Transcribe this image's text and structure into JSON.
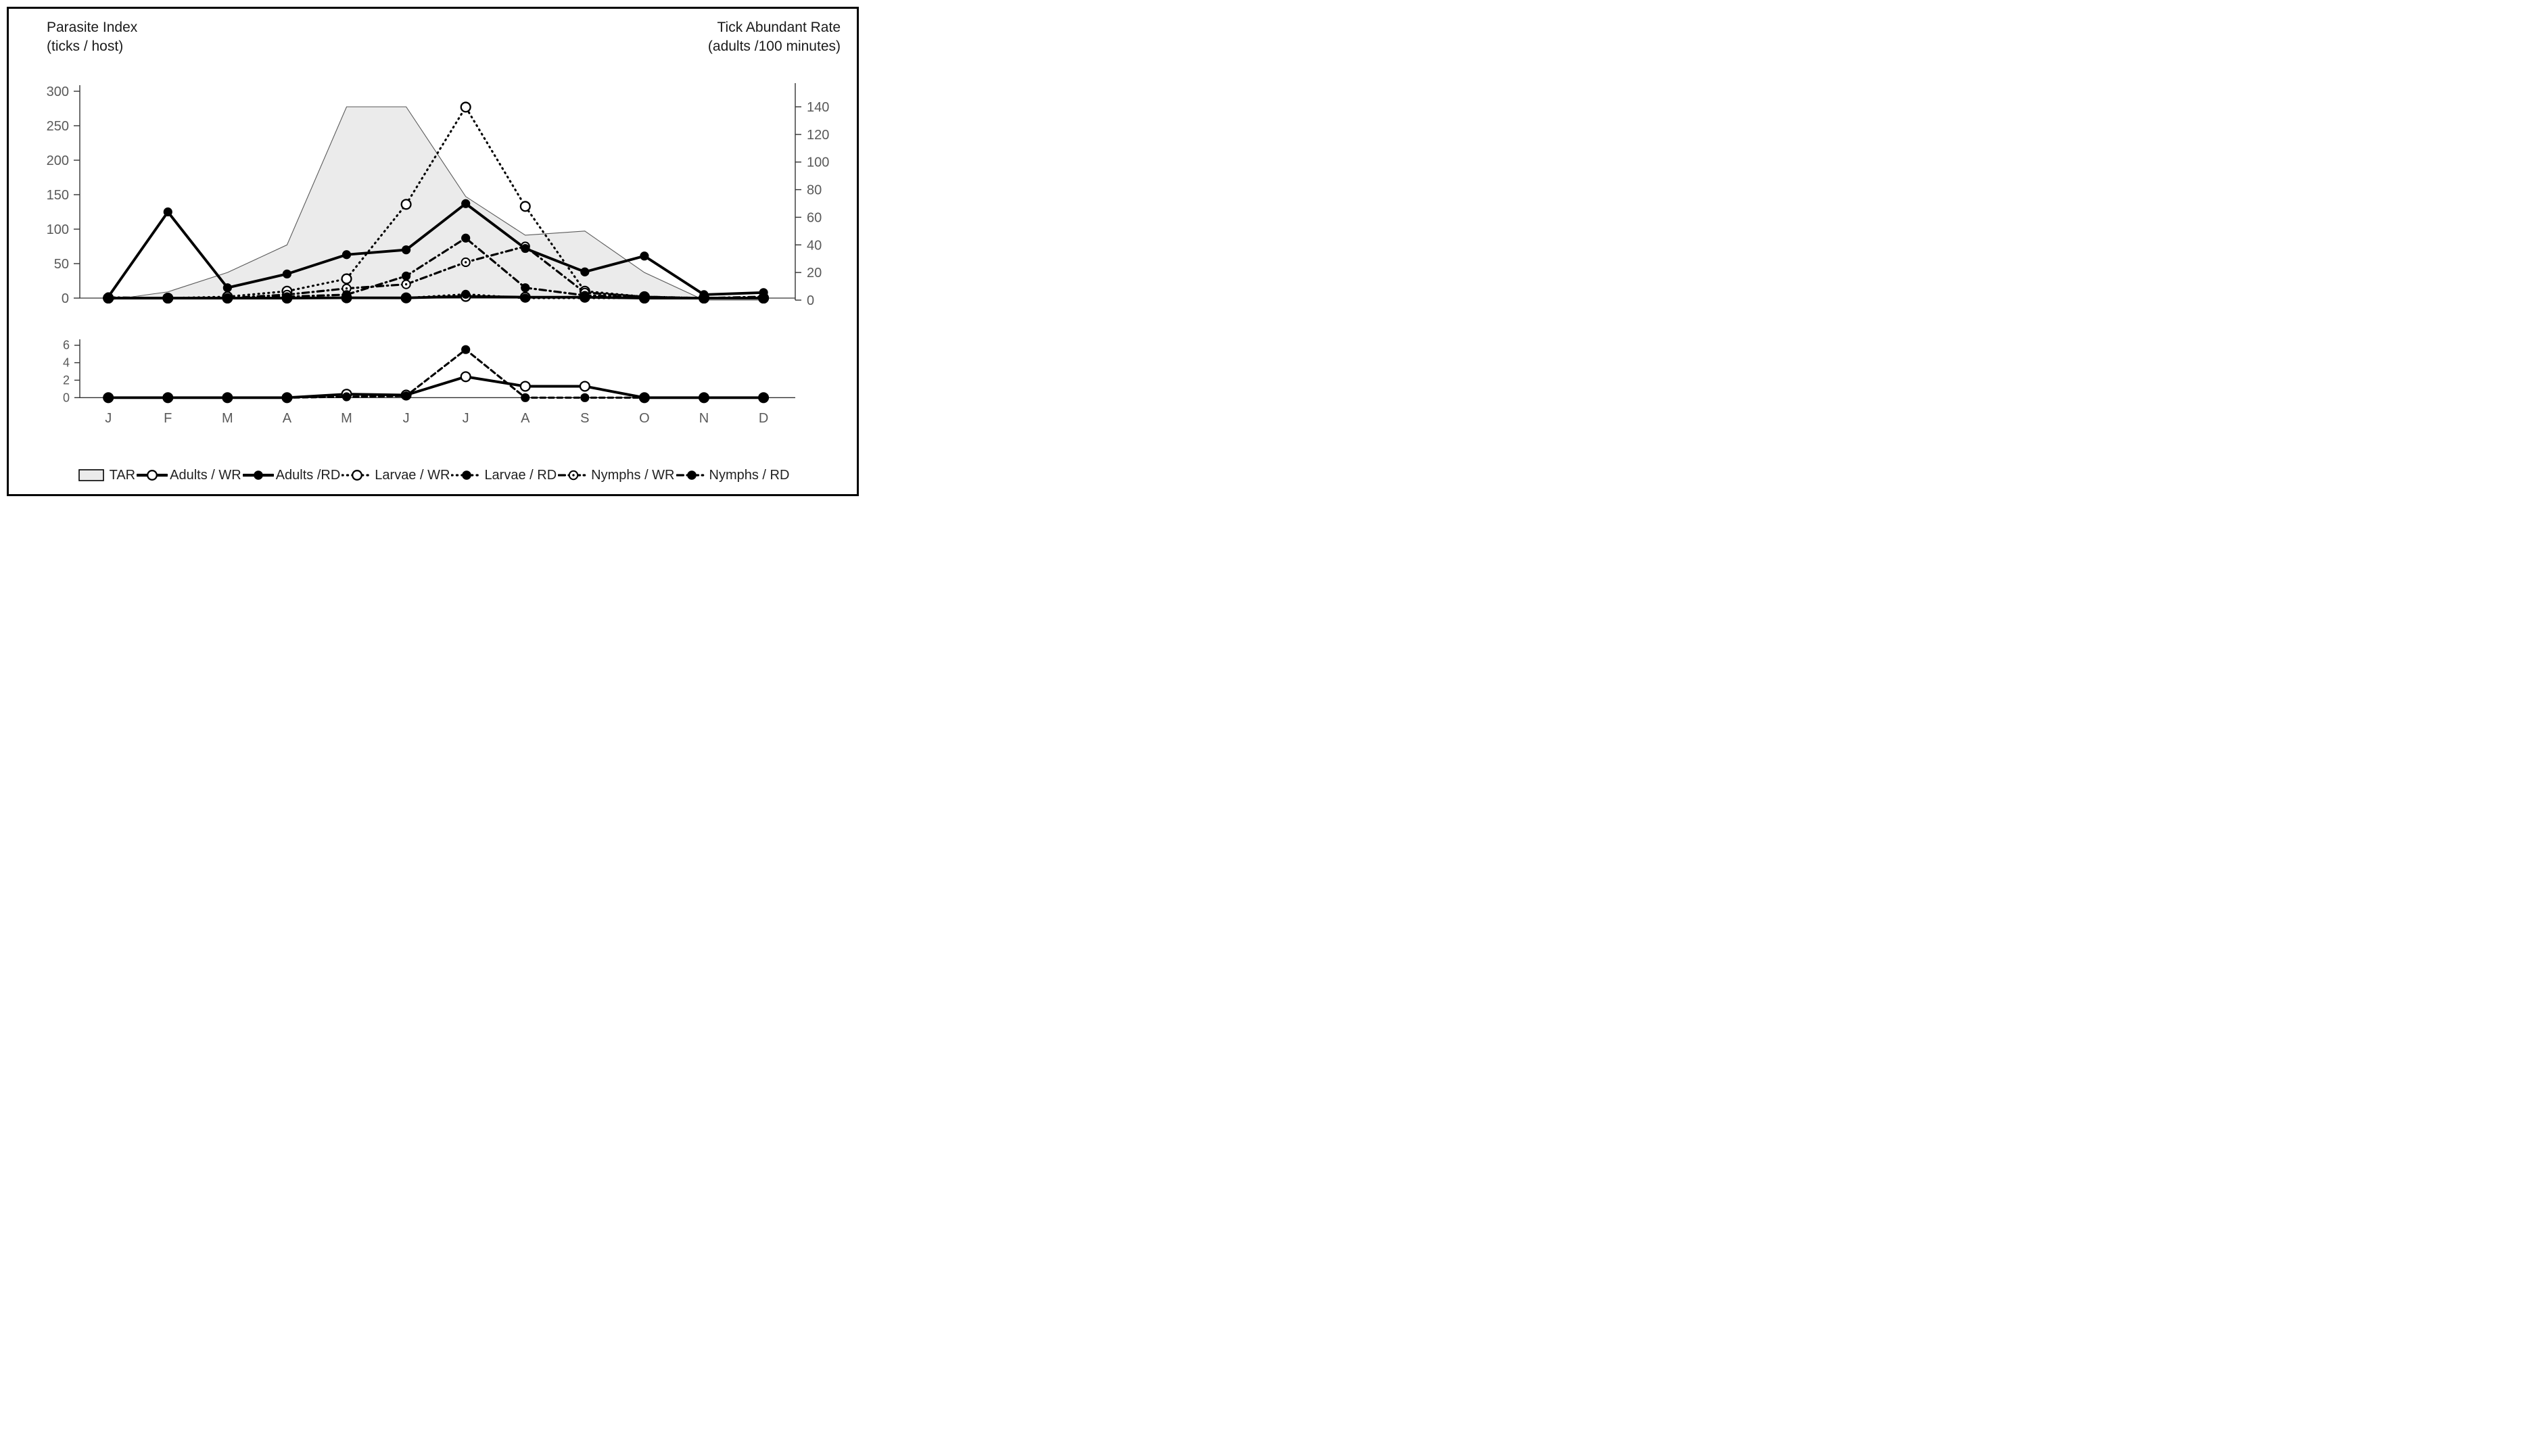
{
  "header": {
    "left_axis_title_line1": "Parasite Index",
    "left_axis_title_line2": "(ticks / host)",
    "right_axis_title_line1": "Tick Abundant Rate",
    "right_axis_title_line2": "(adults /100 minutes)"
  },
  "colors": {
    "area_fill": "#ebebeb",
    "area_stroke": "#5a5a5a",
    "series_color": "#000000",
    "tick_label_color": "#595959",
    "axis_color": "#333333"
  },
  "chart_data": [
    {
      "type": "area",
      "title": "Monthly tick abundance (TAR area, right axis) and parasite index lines (left axis)",
      "categories": [
        "J",
        "F",
        "M",
        "A",
        "M",
        "J",
        "J",
        "A",
        "S",
        "O",
        "N",
        "D"
      ],
      "left_axis": {
        "label": "Parasite Index (ticks / host)",
        "range": [
          0,
          300
        ],
        "ticks": [
          0,
          50,
          100,
          150,
          200,
          250,
          300
        ]
      },
      "right_axis": {
        "label": "Tick Abundant Rate (adults /100 minutes)",
        "range": [
          0,
          140
        ],
        "ticks": [
          0,
          20,
          40,
          60,
          80,
          100,
          120,
          140
        ]
      },
      "grid": false,
      "series": [
        {
          "name": "TAR",
          "axis": "right",
          "type": "area",
          "line": "thin",
          "marker": "none",
          "values": [
            0,
            6,
            20,
            40,
            140,
            140,
            75,
            47,
            50,
            20,
            0,
            0
          ]
        },
        {
          "name": "Adults / WR",
          "axis": "left",
          "type": "line",
          "line": "solid",
          "marker": "open",
          "values": [
            0,
            0,
            0,
            0,
            0.4,
            0.3,
            2.4,
            1.3,
            1.3,
            0,
            0,
            0
          ]
        },
        {
          "name": "Larvae / WR",
          "axis": "left",
          "type": "line",
          "line": "dotted",
          "marker": "open",
          "values": [
            0,
            0,
            2,
            10,
            28,
            136,
            277,
            133,
            10,
            2,
            0,
            0
          ]
        },
        {
          "name": "Nymphs / WR",
          "axis": "left",
          "type": "line",
          "line": "dashdot",
          "marker": "open-dot",
          "values": [
            0,
            0,
            0,
            5,
            14,
            20,
            52,
            75,
            8,
            2,
            0,
            0
          ]
        },
        {
          "name": "Larvae / RD",
          "axis": "left",
          "type": "line",
          "line": "dotted",
          "marker": "filled",
          "values": [
            0,
            0,
            0,
            0,
            0.1,
            0.2,
            5.5,
            0,
            0,
            0,
            0,
            0
          ]
        },
        {
          "name": "Nymphs / RD",
          "axis": "left",
          "type": "line",
          "line": "dashdot",
          "marker": "filled",
          "values": [
            1,
            0,
            0,
            2,
            5,
            32,
            87,
            15,
            4,
            1,
            0,
            2
          ]
        },
        {
          "name": "Adults /RD",
          "axis": "left",
          "type": "line",
          "line": "solid",
          "marker": "filled",
          "values": [
            2,
            125,
            15,
            35,
            63,
            70,
            137,
            72,
            38,
            61,
            5,
            8
          ]
        }
      ]
    },
    {
      "type": "line",
      "title": "Inset detail of low values (0-6 ticks / host)",
      "categories": [
        "J",
        "F",
        "M",
        "A",
        "M",
        "J",
        "J",
        "A",
        "S",
        "O",
        "N",
        "D"
      ],
      "y_axis": {
        "range": [
          0,
          6
        ],
        "ticks": [
          0,
          2,
          4,
          6
        ]
      },
      "series": [
        {
          "name": "Adults / WR",
          "line": "solid",
          "marker": "open",
          "values": [
            0,
            0,
            0,
            0,
            0.4,
            0.3,
            2.4,
            1.3,
            1.3,
            0,
            0,
            0
          ]
        },
        {
          "name": "Larvae / RD",
          "line": "dashed",
          "marker": "filled",
          "values": [
            0,
            0,
            0,
            0,
            0.1,
            0.2,
            5.5,
            0,
            0,
            0,
            0,
            0
          ]
        }
      ]
    }
  ],
  "legend": {
    "items": [
      {
        "label": "TAR",
        "swatch": "area"
      },
      {
        "label": "Adults / WR",
        "swatch": "solid-open"
      },
      {
        "label": "Adults /RD",
        "swatch": "solid-filled"
      },
      {
        "label": "Larvae / WR",
        "swatch": "dotted-open"
      },
      {
        "label": "Larvae / RD",
        "swatch": "dotted-filled"
      },
      {
        "label": "Nymphs / WR",
        "swatch": "dashdot-opendot"
      },
      {
        "label": "Nymphs / RD",
        "swatch": "dashdot-filled"
      }
    ]
  }
}
